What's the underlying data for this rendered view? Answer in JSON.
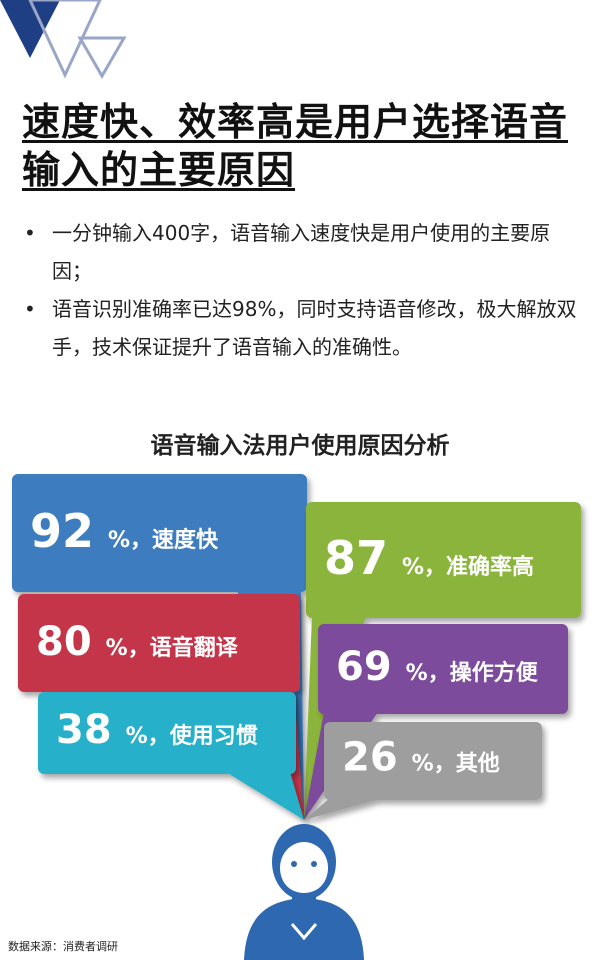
{
  "headline": "速度快、效率高是用户选择语音输入的主要原因",
  "bullets": [
    "一分钟输入400字，语音输入速度快是用户使用的主要原因；",
    "语音识别准确率已达98%，同时支持语音修改，极大解放双手，技术保证提升了语音输入的准确性。"
  ],
  "source": "数据来源：消费者调研",
  "chart_data": {
    "type": "speech-bubble infographic",
    "title": "语音输入法用户使用原因分析",
    "unit": "%",
    "items": [
      {
        "value": 92,
        "label": "速度快",
        "color": "#3d7dbf"
      },
      {
        "value": 87,
        "label": "准确率高",
        "color": "#8ab43a"
      },
      {
        "value": 80,
        "label": "语音翻译",
        "color": "#c5344a"
      },
      {
        "value": 69,
        "label": "操作方便",
        "color": "#7b4c9b"
      },
      {
        "value": 38,
        "label": "使用习惯",
        "color": "#27b0c9"
      },
      {
        "value": 26,
        "label": "其他",
        "color": "#9e9e9e"
      }
    ]
  },
  "colors": {
    "person": "#2e68b0"
  }
}
